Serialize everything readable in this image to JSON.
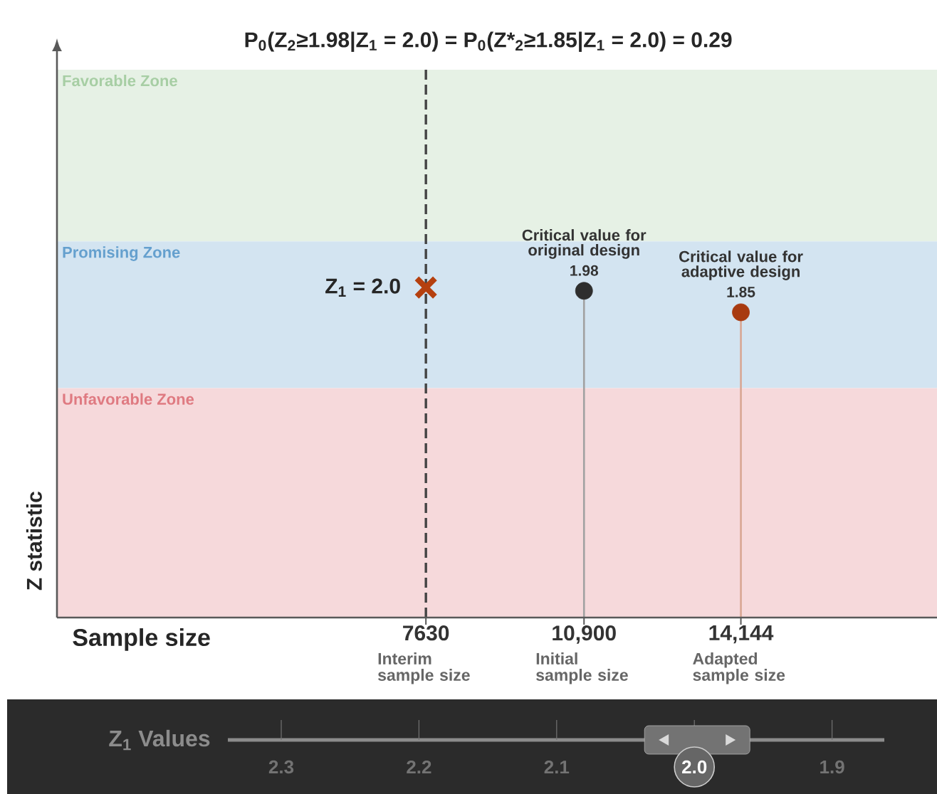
{
  "chart_data": {
    "type": "lollipop",
    "title": "P$_{0}$(Z$_{2}$≥1.98|Z$_{1}$ = 2.0) = P$_{0}$(Z*$_{2}$≥1.85|Z$_{1}$ = 2.0) = 0.29",
    "xlabel": "Sample size",
    "ylabel": "Z statistic",
    "xlim": [
      0,
      18200
    ],
    "ylim": [
      0,
      3.32
    ],
    "xticks": [
      7630,
      {
        "value": 10900,
        "label": "10,900"
      },
      {
        "value": 14144,
        "label": "14,144"
      }
    ],
    "tick_labels": "x",
    "series": [
      {
        "x": [
          10900,
          14144
        ],
        "values": [
          1.98,
          1.85
        ],
        "colors": [
          "#2e2e2e",
          "#a83a10"
        ],
        "value_labels": [
          "1.98",
          "1.85"
        ]
      },
      {
        "type": "scatter",
        "x": [
          7630
        ],
        "values": [
          2.0
        ],
        "color": "#b5400f",
        "marker": "cross"
      }
    ],
    "ref_lines": [
      {
        "axis": "x",
        "value": 7630,
        "color": "#444444",
        "line_style": "dashed"
      }
    ],
    "bands": [
      {
        "axis": "y",
        "from": 2.28,
        "to": 3.32,
        "label": "Favorable Zone",
        "color": "#e6f1e5"
      },
      {
        "axis": "y",
        "from": 1.39,
        "to": 2.28,
        "label": "Promising Zone",
        "color": "#d3e4f1"
      },
      {
        "axis": "y",
        "from": 0,
        "to": 1.39,
        "label": "Unfavorable Zone",
        "color": "#f6d9db"
      }
    ],
    "annotations": [
      {
        "text": "Z$_{1}$ = 2.0",
        "x": 7630,
        "y": 2.0
      },
      {
        "text": "Critical value for original design",
        "x": 10900,
        "y": 1.98
      },
      {
        "text": "Critical value for adaptive design",
        "x": 14144,
        "y": 1.85
      },
      {
        "text": "Interim sample size",
        "x": 7630,
        "y": 0
      },
      {
        "text": "Initial sample size",
        "x": 10900,
        "y": 0
      },
      {
        "text": "Adapted sample size",
        "x": 14144,
        "y": 0
      },
      "Z$_{1}$ Values",
      "2.3",
      "2.2",
      "2.1",
      "2.0",
      "1.9"
    ]
  }
}
